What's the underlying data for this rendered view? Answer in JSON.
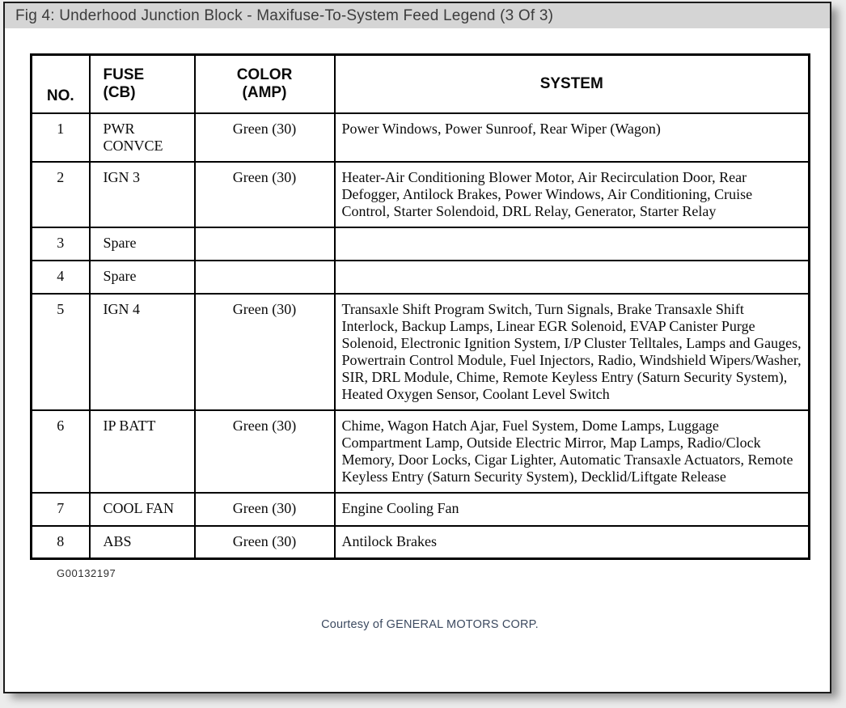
{
  "figure": {
    "title": "Fig 4: Underhood Junction Block - Maxifuse-To-System Feed Legend (3 Of 3)",
    "figure_id": "G00132197",
    "courtesy": "Courtesy of GENERAL MOTORS CORP."
  },
  "colors": {
    "title_bar_bg": "#d5d5d5",
    "title_text": "#3c3c3c",
    "table_border": "#000000",
    "card_bg": "#ffffff",
    "page_bg": "#ececec",
    "footer_text": "#3c4a60"
  },
  "table": {
    "columns": [
      {
        "id": "no",
        "label_lines": [
          "NO."
        ]
      },
      {
        "id": "fuse",
        "label_lines": [
          "FUSE",
          "(CB)"
        ]
      },
      {
        "id": "color",
        "label_lines": [
          "COLOR",
          "(AMP)"
        ]
      },
      {
        "id": "system",
        "label_lines": [
          "SYSTEM"
        ]
      }
    ],
    "rows": [
      {
        "no": "1",
        "fuse": "PWR CONVCE",
        "color": "Green (30)",
        "system": "Power Windows, Power Sunroof, Rear Wiper (Wagon)"
      },
      {
        "no": "2",
        "fuse": "IGN 3",
        "color": "Green (30)",
        "system": "Heater-Air Conditioning Blower Motor, Air Recirculation Door, Rear Defogger, Antilock Brakes, Power Windows, Air Conditioning, Cruise Control, Starter Solendoid, DRL Relay, Generator, Starter Relay"
      },
      {
        "no": "3",
        "fuse": "Spare",
        "color": "",
        "system": ""
      },
      {
        "no": "4",
        "fuse": "Spare",
        "color": "",
        "system": ""
      },
      {
        "no": "5",
        "fuse": "IGN 4",
        "color": "Green (30)",
        "system": "Transaxle Shift Program Switch, Turn Signals, Brake Transaxle Shift Interlock, Backup Lamps, Linear EGR Solenoid, EVAP Canister Purge Solenoid, Electronic Ignition System, I/P Cluster Telltales, Lamps and Gauges, Powertrain Control Module, Fuel Injectors, Radio, Windshield Wipers/Washer, SIR, DRL Module, Chime, Remote Keyless Entry (Saturn Security System), Heated Oxygen Sensor, Coolant Level Switch"
      },
      {
        "no": "6",
        "fuse": "IP BATT",
        "color": "Green (30)",
        "system": "Chime, Wagon Hatch Ajar, Fuel System, Dome Lamps, Luggage Compartment Lamp, Outside Electric Mirror, Map Lamps, Radio/Clock Memory, Door Locks, Cigar Lighter, Automatic Transaxle Actuators, Remote Keyless Entry (Saturn Security System), Decklid/Liftgate Release"
      },
      {
        "no": "7",
        "fuse": "COOL FAN",
        "color": "Green (30)",
        "system": "Engine Cooling Fan"
      },
      {
        "no": "8",
        "fuse": "ABS",
        "color": "Green (30)",
        "system": "Antilock Brakes"
      }
    ]
  }
}
